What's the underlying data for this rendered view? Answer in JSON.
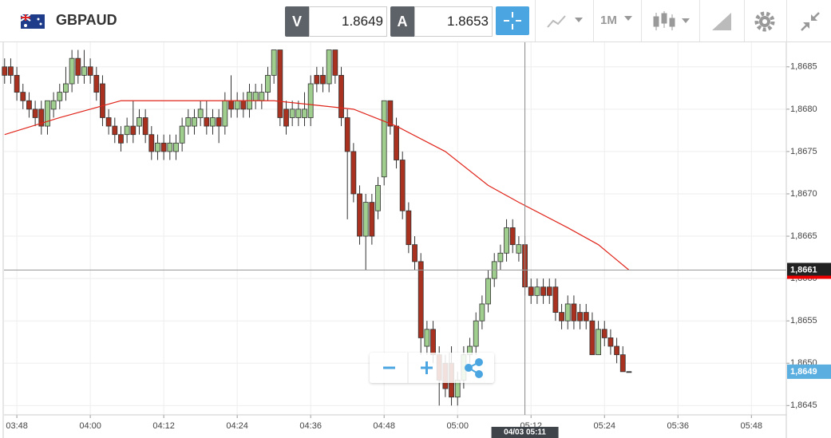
{
  "header": {
    "symbol": "GBPAUD",
    "sell": {
      "label": "V",
      "price": "1.8649"
    },
    "buy": {
      "label": "A",
      "price": "1.8653"
    },
    "timeframe": "1M"
  },
  "chart_data": {
    "type": "candlestick",
    "up_color": "#9fce8e",
    "down_color": "#a8321f",
    "outline_color": "#333333",
    "x": [
      226,
      227,
      228,
      229,
      230,
      231,
      232,
      233,
      234,
      235,
      236,
      237,
      238,
      239,
      240,
      241,
      242,
      243,
      244,
      245,
      246,
      247,
      248,
      249,
      250,
      251,
      252,
      253,
      254,
      255,
      256,
      257,
      258,
      259,
      260,
      261,
      262,
      263,
      264,
      265,
      266,
      267,
      268,
      269,
      270,
      271,
      272,
      273,
      274,
      275,
      276,
      277,
      278,
      279,
      280,
      281,
      282,
      283,
      284,
      285,
      286,
      287,
      288,
      289,
      290,
      291,
      292,
      293,
      294,
      295,
      296,
      297,
      298,
      299,
      300,
      301,
      302,
      303,
      304,
      305,
      306,
      307,
      308,
      309,
      310,
      311,
      312,
      313,
      314,
      315,
      316,
      317,
      318,
      319,
      320,
      321,
      322,
      323,
      324,
      325,
      326,
      327,
      328
    ],
    "open": [
      1.8685,
      1.8685,
      1.8684,
      1.8682,
      1.8681,
      1.868,
      1.868,
      1.8678,
      1.868,
      1.8681,
      1.8682,
      1.8683,
      1.8686,
      1.8684,
      1.8685,
      1.8684,
      1.8683,
      1.8679,
      1.8678,
      1.8677,
      1.8677,
      1.8678,
      1.8678,
      1.8679,
      1.8677,
      1.8675,
      1.8676,
      1.8675,
      1.8675,
      1.8676,
      1.8678,
      1.8678,
      1.8679,
      1.8679,
      1.8678,
      1.8679,
      1.8678,
      1.8681,
      1.868,
      1.8681,
      1.868,
      1.8681,
      1.8681,
      1.8682,
      1.8684,
      1.8687,
      1.868,
      1.8679,
      1.8679,
      1.8679,
      1.8679,
      1.8684,
      1.8684,
      1.8683,
      1.8687,
      1.8684,
      1.8679,
      1.8675,
      1.867,
      1.8665,
      1.8669,
      1.8668,
      1.8672,
      1.8681,
      1.8678,
      1.8674,
      1.8668,
      1.8664,
      1.8662,
      1.8652,
      1.8654,
      1.8651,
      1.865,
      1.865,
      1.8646,
      1.8648,
      1.8651,
      1.8652,
      1.8655,
      1.8657,
      1.866,
      1.8662,
      1.8663,
      1.8666,
      1.8663,
      1.8664,
      1.8659,
      1.8658,
      1.8659,
      1.8659,
      1.8659,
      1.8656,
      1.8655,
      1.8657,
      1.8656,
      1.8656,
      1.8655,
      1.8651,
      1.8654,
      1.8653,
      1.8652,
      1.8651,
      1.8649
    ],
    "high": [
      1.8686,
      1.8686,
      1.8685,
      1.8683,
      1.8682,
      1.8681,
      1.8681,
      1.8681,
      1.8682,
      1.8683,
      1.8685,
      1.8687,
      1.8687,
      1.8687,
      1.8686,
      1.8685,
      1.8684,
      1.868,
      1.8679,
      1.8678,
      1.8679,
      1.8681,
      1.868,
      1.868,
      1.8678,
      1.8677,
      1.8677,
      1.8677,
      1.8677,
      1.8679,
      1.868,
      1.868,
      1.8681,
      1.8681,
      1.868,
      1.868,
      1.8682,
      1.8684,
      1.8682,
      1.8682,
      1.8683,
      1.8683,
      1.8683,
      1.8685,
      1.8687,
      1.8687,
      1.8681,
      1.8681,
      1.8681,
      1.8682,
      1.8684,
      1.8685,
      1.8685,
      1.8687,
      1.8687,
      1.8685,
      1.868,
      1.8676,
      1.8671,
      1.867,
      1.867,
      1.8672,
      1.8681,
      1.8681,
      1.8679,
      1.8675,
      1.8669,
      1.8665,
      1.8663,
      1.8655,
      1.8655,
      1.8652,
      1.8651,
      1.8652,
      1.8649,
      1.8652,
      1.8653,
      1.8656,
      1.8658,
      1.8661,
      1.8663,
      1.8664,
      1.8667,
      1.8667,
      1.8665,
      1.8665,
      1.866,
      1.866,
      1.866,
      1.866,
      1.866,
      1.8657,
      1.8658,
      1.8658,
      1.8657,
      1.8657,
      1.8656,
      1.8655,
      1.8655,
      1.8654,
      1.8653,
      1.8652,
      1.8649
    ],
    "low": [
      1.8683,
      1.8683,
      1.8681,
      1.868,
      1.8679,
      1.8678,
      1.8677,
      1.8677,
      1.8679,
      1.868,
      1.8681,
      1.8682,
      1.8683,
      1.8683,
      1.8683,
      1.8681,
      1.8678,
      1.8677,
      1.8676,
      1.8675,
      1.8676,
      1.8676,
      1.8677,
      1.8676,
      1.8674,
      1.8674,
      1.8674,
      1.8674,
      1.8674,
      1.8675,
      1.8677,
      1.8677,
      1.8678,
      1.8677,
      1.8677,
      1.8676,
      1.8677,
      1.8679,
      1.8679,
      1.8679,
      1.8679,
      1.868,
      1.868,
      1.8681,
      1.8683,
      1.8678,
      1.8677,
      1.8678,
      1.8678,
      1.8678,
      1.8678,
      1.8682,
      1.8682,
      1.8682,
      1.8683,
      1.8678,
      1.8667,
      1.8669,
      1.8664,
      1.8661,
      1.8664,
      1.8667,
      1.8671,
      1.8677,
      1.8673,
      1.8667,
      1.8663,
      1.8661,
      1.8651,
      1.8651,
      1.865,
      1.8645,
      1.8646,
      1.8645,
      1.8645,
      1.8647,
      1.865,
      1.8651,
      1.8654,
      1.8656,
      1.8659,
      1.8661,
      1.8662,
      1.8663,
      1.8662,
      1.8658,
      1.8657,
      1.8657,
      1.8657,
      1.8657,
      1.8655,
      1.8654,
      1.8654,
      1.8654,
      1.8654,
      1.8654,
      1.8651,
      1.8651,
      1.8652,
      1.8651,
      1.865,
      1.8649,
      1.8649
    ],
    "close": [
      1.8684,
      1.8684,
      1.8682,
      1.8681,
      1.868,
      1.8679,
      1.8678,
      1.8681,
      1.8681,
      1.8682,
      1.8683,
      1.8686,
      1.8684,
      1.8685,
      1.8684,
      1.8682,
      1.8679,
      1.8678,
      1.8677,
      1.8676,
      1.8678,
      1.8677,
      1.8679,
      1.8677,
      1.8675,
      1.8676,
      1.8675,
      1.8676,
      1.8676,
      1.8678,
      1.8679,
      1.8679,
      1.868,
      1.8678,
      1.8679,
      1.8678,
      1.8681,
      1.868,
      1.8681,
      1.868,
      1.8682,
      1.8682,
      1.8682,
      1.8684,
      1.8687,
      1.8679,
      1.8678,
      1.868,
      1.868,
      1.868,
      1.8683,
      1.8683,
      1.8683,
      1.8687,
      1.8684,
      1.8679,
      1.8675,
      1.867,
      1.8665,
      1.8669,
      1.8665,
      1.8671,
      1.8681,
      1.8678,
      1.8674,
      1.8668,
      1.8664,
      1.8662,
      1.8653,
      1.8654,
      1.8651,
      1.8648,
      1.8647,
      1.8646,
      1.8648,
      1.8651,
      1.8652,
      1.8655,
      1.8657,
      1.866,
      1.8662,
      1.8663,
      1.8666,
      1.8664,
      1.8664,
      1.8659,
      1.8658,
      1.8659,
      1.8658,
      1.8658,
      1.8656,
      1.8655,
      1.8657,
      1.8655,
      1.8655,
      1.8655,
      1.8651,
      1.8654,
      1.8653,
      1.8652,
      1.8651,
      1.8649,
      1.8649
    ],
    "average": {
      "color": "#e0261c",
      "x": [
        226,
        235,
        245,
        270,
        283,
        290,
        298,
        305,
        310,
        318,
        323,
        328
      ],
      "values": [
        1.8677,
        1.8679,
        1.8681,
        1.8681,
        1.868,
        1.8678,
        1.8675,
        1.8671,
        1.8669,
        1.8666,
        1.8664,
        1.8661
      ]
    },
    "xlim": [
      225.9,
      353.7
    ],
    "xticks": [
      {
        "value": 228,
        "label": "03:48"
      },
      {
        "value": 240,
        "label": "04:00"
      },
      {
        "value": 252,
        "label": "04:12"
      },
      {
        "value": 264,
        "label": "04:24"
      },
      {
        "value": 276,
        "label": "04:36"
      },
      {
        "value": 288,
        "label": "04:48"
      },
      {
        "value": 300,
        "label": "05:00"
      },
      {
        "value": 312,
        "label": "05:12"
      },
      {
        "value": 324,
        "label": "05:24"
      },
      {
        "value": 336,
        "label": "05:36"
      },
      {
        "value": 348,
        "label": "05:48"
      }
    ],
    "ylim": [
      1.86439,
      1.86879
    ],
    "yticks": [
      {
        "value": 1.8645,
        "label": "1,8645"
      },
      {
        "value": 1.865,
        "label": "1,8650"
      },
      {
        "value": 1.8655,
        "label": "1,8655"
      },
      {
        "value": 1.866,
        "label": "1,8660"
      },
      {
        "value": 1.8665,
        "label": "1,8665"
      },
      {
        "value": 1.867,
        "label": "1,8670"
      },
      {
        "value": 1.8675,
        "label": "1,8675"
      },
      {
        "value": 1.868,
        "label": "1,8680"
      },
      {
        "value": 1.8685,
        "label": "1,8685"
      }
    ],
    "grid": true,
    "price_line": {
      "value": 1.8661,
      "label": "1,8661"
    },
    "last_price": {
      "value": 1.8649,
      "label": "1,8649"
    },
    "crosshair": {
      "x": 311,
      "label": "04/03 05:11"
    }
  }
}
